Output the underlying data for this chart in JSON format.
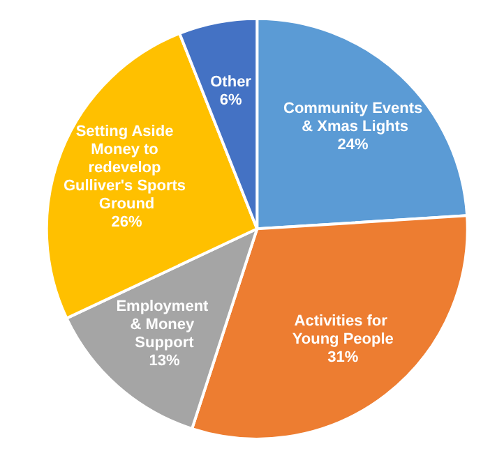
{
  "chart_data": {
    "type": "pie",
    "categories": [
      "Community Events & Xmas Lights",
      "Activities for Young People",
      "Employment & Money Support",
      "Setting Aside Money to redevelop Gulliver's Sports Ground",
      "Other"
    ],
    "values": [
      24,
      31,
      13,
      26,
      6
    ],
    "value_labels": [
      "24%",
      "31%",
      "13%",
      "26%",
      "6%"
    ],
    "colors": [
      "#5b9bd5",
      "#ed7d31",
      "#a5a5a5",
      "#ffc000",
      "#4472c4"
    ]
  }
}
